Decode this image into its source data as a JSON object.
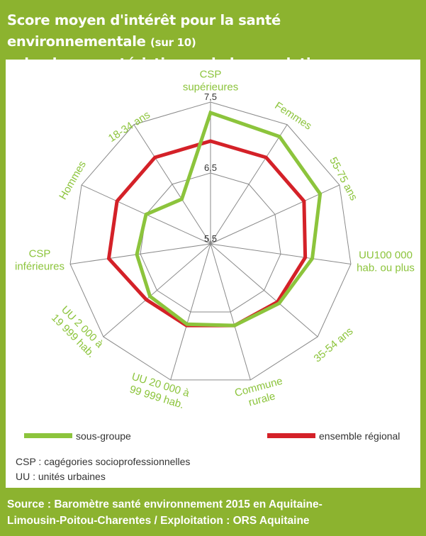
{
  "title": {
    "main": "Score moyen d'intérêt pour la santé environnementale",
    "unit": "(sur 10)",
    "line2": "selon les caractéristiques de la population"
  },
  "chart_data": {
    "type": "radar",
    "categories": [
      "CSP supérieures",
      "Femmes",
      "55-75 ans",
      "UU100 000 hab. ou plus",
      "35-54 ans",
      "Commune rurale",
      "UU 20 000 à 99 999 hab.",
      "UU 2 000 à 19 999 hab.",
      "CSP inférieures",
      "Hommes",
      "18-34 ans"
    ],
    "category_lines": [
      [
        "CSP",
        "supérieures"
      ],
      [
        "Femmes"
      ],
      [
        "55-75 ans"
      ],
      [
        "UU100 000",
        "hab. ou plus"
      ],
      [
        "35-54 ans"
      ],
      [
        "Commune",
        "rurale"
      ],
      [
        "UU 20 000 à",
        "99 999 hab."
      ],
      [
        "UU 2 000 à",
        "19 999 hab."
      ],
      [
        "CSP",
        "inférieures"
      ],
      [
        "Hommes"
      ],
      [
        "18-34 ans"
      ]
    ],
    "tick_labels": [
      "5,5",
      "6,5",
      "7,5"
    ],
    "rmin": 5.5,
    "rmax": 7.5,
    "series": [
      {
        "name": "sous-groupe",
        "color": "#8cc43c",
        "values": [
          7.35,
          7.3,
          7.2,
          6.95,
          6.78,
          6.7,
          6.68,
          6.63,
          6.55,
          6.5,
          6.25
        ]
      },
      {
        "name": "ensemble régional",
        "color": "#d42128",
        "values": [
          6.95,
          6.95,
          6.95,
          6.85,
          6.75,
          6.7,
          6.7,
          6.7,
          6.95,
          6.95,
          6.95
        ]
      }
    ]
  },
  "notes": [
    "CSP : cagégories socioprofessionnelles",
    "UU : unités urbaines"
  ],
  "footer": {
    "line1": "Source : Baromètre santé environnement 2015 en Aquitaine-",
    "line2": "Limousin-Poitou-Charentes  / Exploitation : ORS Aquitaine"
  }
}
